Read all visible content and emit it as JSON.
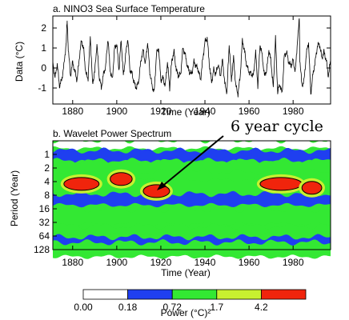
{
  "chart_data": [
    {
      "type": "line",
      "title": "a. NINO3 Sea Surface Temperature",
      "xlabel": "Time (Year)",
      "ylabel": "Data (°C)",
      "xlim": [
        1871,
        1997
      ],
      "ylim": [
        -1.8,
        2.6
      ],
      "xticks": [
        1880,
        1900,
        1920,
        1940,
        1960,
        1980
      ],
      "yticks": [
        -1,
        0,
        1,
        2
      ],
      "grid": false,
      "series": [
        {
          "x": [
            1871,
            1872,
            1873,
            1874,
            1875,
            1876,
            1877,
            1877.5,
            1878,
            1879,
            1880,
            1881,
            1882,
            1883,
            1884,
            1885,
            1886,
            1887,
            1888,
            1889,
            1890,
            1891,
            1892,
            1893,
            1894,
            1895,
            1896,
            1897,
            1898,
            1899,
            1900,
            1901,
            1902,
            1903,
            1904,
            1905,
            1906,
            1907,
            1908,
            1909,
            1910,
            1911,
            1912,
            1913,
            1914,
            1915,
            1916,
            1917,
            1918,
            1919,
            1920,
            1921,
            1922,
            1923,
            1924,
            1925,
            1926,
            1927,
            1928,
            1929,
            1930,
            1931,
            1932,
            1933,
            1934,
            1935,
            1936,
            1937,
            1938,
            1939,
            1940,
            1941,
            1942,
            1943,
            1944,
            1945,
            1946,
            1947,
            1948,
            1949,
            1950,
            1951,
            1952,
            1953,
            1954,
            1955,
            1956,
            1957,
            1958,
            1959,
            1960,
            1961,
            1962,
            1963,
            1964,
            1965,
            1966,
            1967,
            1968,
            1969,
            1970,
            1971,
            1972,
            1973,
            1974,
            1975,
            1976,
            1977,
            1978,
            1979,
            1980,
            1981,
            1982,
            1982.8,
            1983,
            1984,
            1985,
            1986,
            1987,
            1988,
            1989,
            1990,
            1991,
            1992,
            1993,
            1994,
            1995,
            1996,
            1997
          ],
          "values": [
            0.3,
            -0.5,
            0.2,
            -0.9,
            -0.6,
            0.1,
            1.2,
            2.4,
            1.0,
            -0.4,
            0.3,
            -0.2,
            -0.6,
            0.5,
            1.4,
            0.9,
            -0.3,
            -0.5,
            1.6,
            -0.8,
            -0.2,
            1.2,
            -0.4,
            -1.0,
            -0.3,
            0.1,
            1.5,
            -0.1,
            -0.6,
            1.0,
            1.2,
            -0.1,
            1.4,
            -0.4,
            0.6,
            1.5,
            -0.1,
            -0.3,
            -0.8,
            -1.0,
            -0.6,
            0.4,
            0.9,
            0.2,
            1.3,
            -0.2,
            -0.9,
            -1.2,
            0.7,
            1.0,
            -0.6,
            -0.5,
            -0.9,
            0.3,
            -1.0,
            0.4,
            0.8,
            -0.1,
            -0.4,
            -0.3,
            1.0,
            0.7,
            0.1,
            -0.2,
            -0.3,
            0.3,
            0.1,
            -0.1,
            -0.6,
            0.4,
            1.3,
            1.5,
            0.2,
            -0.7,
            -0.1,
            -0.3,
            0.2,
            -0.4,
            0.4,
            -0.8,
            -1.2,
            1.2,
            -0.6,
            0.5,
            -0.9,
            -1.3,
            -0.4,
            1.4,
            0.8,
            0.1,
            -0.2,
            -0.3,
            -0.4,
            0.8,
            -0.9,
            1.2,
            0.6,
            -0.4,
            -0.1,
            0.9,
            0.3,
            -1.0,
            1.5,
            -1.2,
            -0.8,
            -1.3,
            0.6,
            0.8,
            0.3,
            0.1,
            0.4,
            -0.2,
            1.4,
            2.5,
            0.5,
            -0.9,
            -0.6,
            0.7,
            1.3,
            -1.3,
            -0.3,
            0.3,
            1.1,
            1.2,
            0.5,
            0.8,
            0.4,
            -0.4,
            0.4
          ]
        }
      ]
    },
    {
      "type": "heatmap",
      "title": "b. Wavelet Power Spectrum",
      "xlabel": "Time (Year)",
      "ylabel": "Period (Year)",
      "xlim": [
        1871,
        1997
      ],
      "ylim": [
        128,
        0.5
      ],
      "yscale": "log2",
      "xticks": [
        1880,
        1900,
        1920,
        1940,
        1960,
        1980
      ],
      "yticks": [
        1,
        2,
        4,
        8,
        16,
        32,
        64,
        128
      ],
      "ytick_labels": [
        "1",
        "2",
        "4",
        "8",
        "16",
        "32",
        "64",
        "128"
      ],
      "annotation": "6 year cycle",
      "colorbar": {
        "label": "Power (°C)²",
        "ticks": [
          "0.00",
          "0.18",
          "0.72",
          "1.7",
          "4.2"
        ],
        "colors": [
          "#ffffff",
          "#1f3ff0",
          "#33e833",
          "#c8f030",
          "#f0240c"
        ]
      },
      "bands": [
        {
          "period": 0.6,
          "year_from": 1871,
          "year_to": 1997,
          "level": 0
        },
        {
          "period": 1.1,
          "year_from": 1871,
          "year_to": 1997,
          "level": 1
        },
        {
          "period": 2.0,
          "year_from": 1871,
          "year_to": 1997,
          "level": 2
        },
        {
          "period": 3.0,
          "year_from": 1871,
          "year_to": 1997,
          "level": 2
        },
        {
          "period": 10,
          "year_from": 1871,
          "year_to": 1997,
          "level": 1
        },
        {
          "period": 24,
          "year_from": 1871,
          "year_to": 1997,
          "level": 2
        },
        {
          "period": 48,
          "year_from": 1871,
          "year_to": 1997,
          "level": 2
        },
        {
          "period": 90,
          "year_from": 1871,
          "year_to": 1997,
          "level": 1
        },
        {
          "period": 128,
          "year_from": 1871,
          "year_to": 1997,
          "level": 2
        }
      ],
      "hotspots": [
        {
          "year_from": 1876,
          "year_to": 1892,
          "period": 4.5,
          "level": 4
        },
        {
          "year_from": 1897,
          "year_to": 1907,
          "period": 3.5,
          "level": 4
        },
        {
          "year_from": 1912,
          "year_to": 1924,
          "period": 6.5,
          "level": 4
        },
        {
          "year_from": 1965,
          "year_to": 1984,
          "period": 4.5,
          "level": 4
        },
        {
          "year_from": 1984,
          "year_to": 1993,
          "period": 5.5,
          "level": 4
        }
      ]
    }
  ]
}
